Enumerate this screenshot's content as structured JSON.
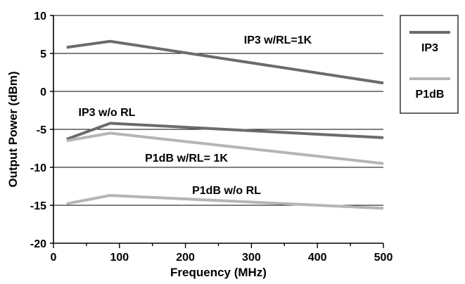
{
  "chart_data": {
    "type": "line",
    "title": "",
    "xlabel": "Frequency (MHz)",
    "ylabel": "Output Power (dBm)",
    "xlim": [
      0,
      500
    ],
    "ylim": [
      -20,
      10
    ],
    "x_ticks": [
      "0",
      "100",
      "200",
      "300",
      "400",
      "500"
    ],
    "y_ticks": [
      "10",
      "5",
      "0",
      "-5",
      "-10",
      "-15",
      "-20"
    ],
    "grid": "horizontal",
    "legend_position": "right",
    "legend": [
      "IP3",
      "P1dB"
    ],
    "series": [
      {
        "group": "IP3",
        "label": "IP3 w/RL=1K",
        "color": "#6b6b6b",
        "x": [
          20,
          86,
          500
        ],
        "y": [
          5.8,
          6.6,
          1.1
        ]
      },
      {
        "group": "IP3",
        "label": "IP3 w/o RL",
        "color": "#6b6b6b",
        "x": [
          20,
          86,
          500
        ],
        "y": [
          -6.3,
          -4.2,
          -6.1
        ]
      },
      {
        "group": "P1dB",
        "label": "P1dB w/RL= 1K",
        "color": "#b5b5b5",
        "x": [
          20,
          86,
          500
        ],
        "y": [
          -6.5,
          -5.5,
          -9.5
        ]
      },
      {
        "group": "P1dB",
        "label": "P1dB w/o RL",
        "color": "#b5b5b5",
        "x": [
          20,
          86,
          500
        ],
        "y": [
          -14.8,
          -13.7,
          -15.4
        ]
      }
    ]
  }
}
